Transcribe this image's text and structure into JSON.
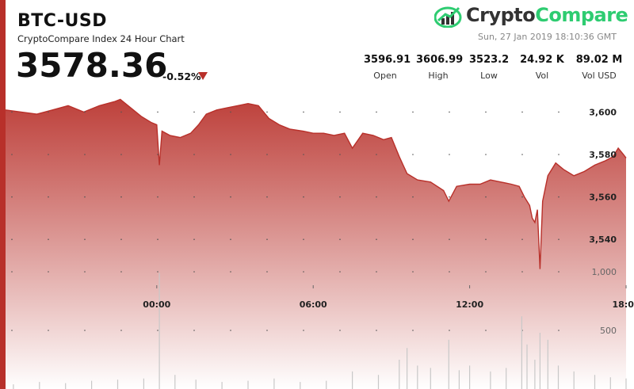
{
  "header": {
    "pair": "BTC-USD",
    "subtitle": "CryptoCompare Index 24 Hour Chart",
    "price": "3578.36",
    "change": "-0.52%",
    "timestamp": "Sun, 27 Jan 2019 18:10:36 GMT",
    "logo_part1": "Crypto",
    "logo_part2": "Compare"
  },
  "stats": [
    {
      "value": "3596.91",
      "label": "Open"
    },
    {
      "value": "3606.99",
      "label": "High"
    },
    {
      "value": "3523.2",
      "label": "Low"
    },
    {
      "value": "24.92 K",
      "label": "Vol"
    },
    {
      "value": "89.02 M",
      "label": "Vol USD"
    }
  ],
  "colors": {
    "accent_red": "#b8302a",
    "area_top": "#b8302a",
    "area_bottom": "#ffffff",
    "logo_green": "#2ecc71",
    "volume_bar": "#c8c8c8"
  },
  "chart_data": {
    "type": "area",
    "x_label": "",
    "y_label": "",
    "x_unit": "hours since the 00:00 tick",
    "x_ticks": [
      {
        "x": 0,
        "label": "00:00"
      },
      {
        "x": 6,
        "label": "06:00"
      },
      {
        "x": 12,
        "label": "12:00"
      },
      {
        "x": 18,
        "label": "18:00"
      }
    ],
    "xlim": [
      -5.8,
      18
    ],
    "price": {
      "ylim": [
        3524,
        3608
      ],
      "y_ticks": [
        {
          "y": 3600,
          "label": "3,600"
        },
        {
          "y": 3580,
          "label": "3,580"
        },
        {
          "y": 3560,
          "label": "3,560"
        },
        {
          "y": 3540,
          "label": "3,540"
        }
      ],
      "points": [
        [
          -5.8,
          3601
        ],
        [
          -5.2,
          3600
        ],
        [
          -4.6,
          3599
        ],
        [
          -4.0,
          3601
        ],
        [
          -3.4,
          3603
        ],
        [
          -2.8,
          3600
        ],
        [
          -2.2,
          3603
        ],
        [
          -1.6,
          3605
        ],
        [
          -1.4,
          3606
        ],
        [
          -1.0,
          3602
        ],
        [
          -0.6,
          3598
        ],
        [
          -0.2,
          3595
        ],
        [
          0.0,
          3594
        ],
        [
          0.1,
          3575
        ],
        [
          0.2,
          3591
        ],
        [
          0.5,
          3589
        ],
        [
          0.9,
          3588
        ],
        [
          1.3,
          3590
        ],
        [
          1.6,
          3594
        ],
        [
          1.9,
          3599
        ],
        [
          2.3,
          3601
        ],
        [
          2.7,
          3602
        ],
        [
          3.1,
          3603
        ],
        [
          3.5,
          3604
        ],
        [
          3.9,
          3603
        ],
        [
          4.3,
          3597
        ],
        [
          4.7,
          3594
        ],
        [
          5.1,
          3592
        ],
        [
          5.6,
          3591
        ],
        [
          6.0,
          3590
        ],
        [
          6.4,
          3590
        ],
        [
          6.8,
          3589
        ],
        [
          7.2,
          3590
        ],
        [
          7.5,
          3583
        ],
        [
          7.9,
          3590
        ],
        [
          8.3,
          3589
        ],
        [
          8.7,
          3587
        ],
        [
          9.0,
          3588
        ],
        [
          9.3,
          3579
        ],
        [
          9.6,
          3571
        ],
        [
          10.0,
          3568
        ],
        [
          10.5,
          3567
        ],
        [
          11.0,
          3563
        ],
        [
          11.2,
          3558
        ],
        [
          11.5,
          3565
        ],
        [
          12.0,
          3566
        ],
        [
          12.4,
          3566
        ],
        [
          12.8,
          3568
        ],
        [
          13.2,
          3567
        ],
        [
          13.6,
          3566
        ],
        [
          13.9,
          3565
        ],
        [
          14.1,
          3560
        ],
        [
          14.3,
          3556
        ],
        [
          14.4,
          3550
        ],
        [
          14.5,
          3548
        ],
        [
          14.6,
          3554
        ],
        [
          14.7,
          3526
        ],
        [
          14.8,
          3558
        ],
        [
          15.0,
          3570
        ],
        [
          15.3,
          3576
        ],
        [
          15.6,
          3573
        ],
        [
          16.0,
          3570
        ],
        [
          16.4,
          3572
        ],
        [
          16.8,
          3575
        ],
        [
          17.2,
          3577
        ],
        [
          17.5,
          3579
        ],
        [
          17.7,
          3583
        ],
        [
          17.9,
          3580
        ],
        [
          18.0,
          3578.36
        ]
      ]
    },
    "volume": {
      "y_ticks": [
        {
          "y": 1000,
          "label": "1,000"
        },
        {
          "y": 500,
          "label": "500"
        }
      ],
      "ylim": [
        0,
        1500
      ],
      "bars": [
        [
          -5.5,
          40
        ],
        [
          -4.5,
          60
        ],
        [
          -3.5,
          50
        ],
        [
          -2.5,
          70
        ],
        [
          -1.5,
          80
        ],
        [
          -0.5,
          90
        ],
        [
          0.1,
          990
        ],
        [
          0.7,
          120
        ],
        [
          1.5,
          80
        ],
        [
          2.5,
          60
        ],
        [
          3.5,
          70
        ],
        [
          4.5,
          90
        ],
        [
          5.5,
          60
        ],
        [
          6.5,
          70
        ],
        [
          7.5,
          150
        ],
        [
          8.5,
          120
        ],
        [
          9.3,
          250
        ],
        [
          9.6,
          350
        ],
        [
          10.0,
          200
        ],
        [
          10.5,
          180
        ],
        [
          11.2,
          420
        ],
        [
          11.6,
          160
        ],
        [
          12.0,
          200
        ],
        [
          12.8,
          150
        ],
        [
          13.4,
          180
        ],
        [
          14.0,
          620
        ],
        [
          14.2,
          380
        ],
        [
          14.5,
          250
        ],
        [
          14.7,
          480
        ],
        [
          15.0,
          420
        ],
        [
          15.4,
          200
        ],
        [
          16.0,
          150
        ],
        [
          16.8,
          120
        ],
        [
          17.4,
          100
        ],
        [
          18.0,
          90
        ]
      ]
    }
  }
}
